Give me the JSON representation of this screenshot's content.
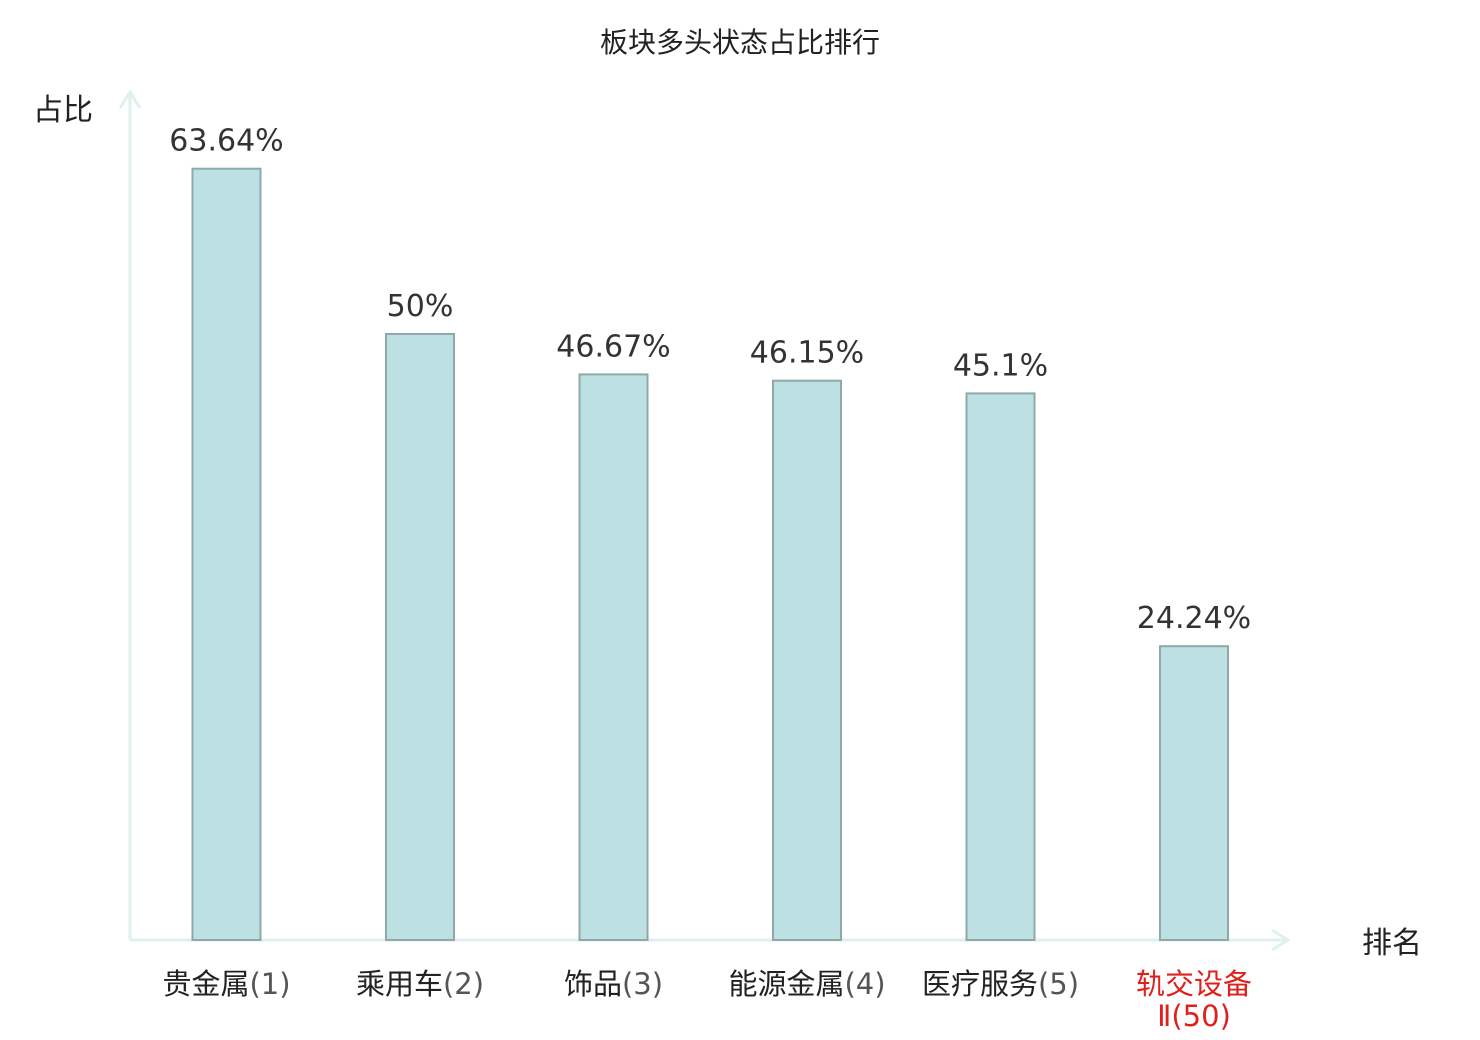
{
  "chart_data": {
    "type": "bar",
    "title": "板块多头状态占比排行",
    "ylabel": "占比",
    "xlabel": "排名",
    "ylim": [
      0,
      70
    ],
    "grid": false,
    "legend": "none",
    "categories": [
      {
        "name": "贵金属",
        "rank": "(1)",
        "highlight": false
      },
      {
        "name": "乘用车",
        "rank": "(2)",
        "highlight": false
      },
      {
        "name": "饰品",
        "rank": "(3)",
        "highlight": false
      },
      {
        "name": "能源金属",
        "rank": "(4)",
        "highlight": false
      },
      {
        "name": "医疗服务",
        "rank": "(5)",
        "highlight": false
      },
      {
        "name": "轨交设备",
        "rank": "Ⅱ(50)",
        "highlight": true
      }
    ],
    "values": [
      63.64,
      50,
      46.67,
      46.15,
      45.1,
      24.24
    ],
    "value_labels": [
      "63.64%",
      "50%",
      "46.67%",
      "46.15%",
      "45.1%",
      "24.24%"
    ],
    "colors": {
      "bar_fill": "#bde0e3",
      "bar_stroke": "#8fa9ab",
      "axis": "#dff1ef",
      "highlight_text": "#e0201c",
      "text": "#222222"
    }
  }
}
